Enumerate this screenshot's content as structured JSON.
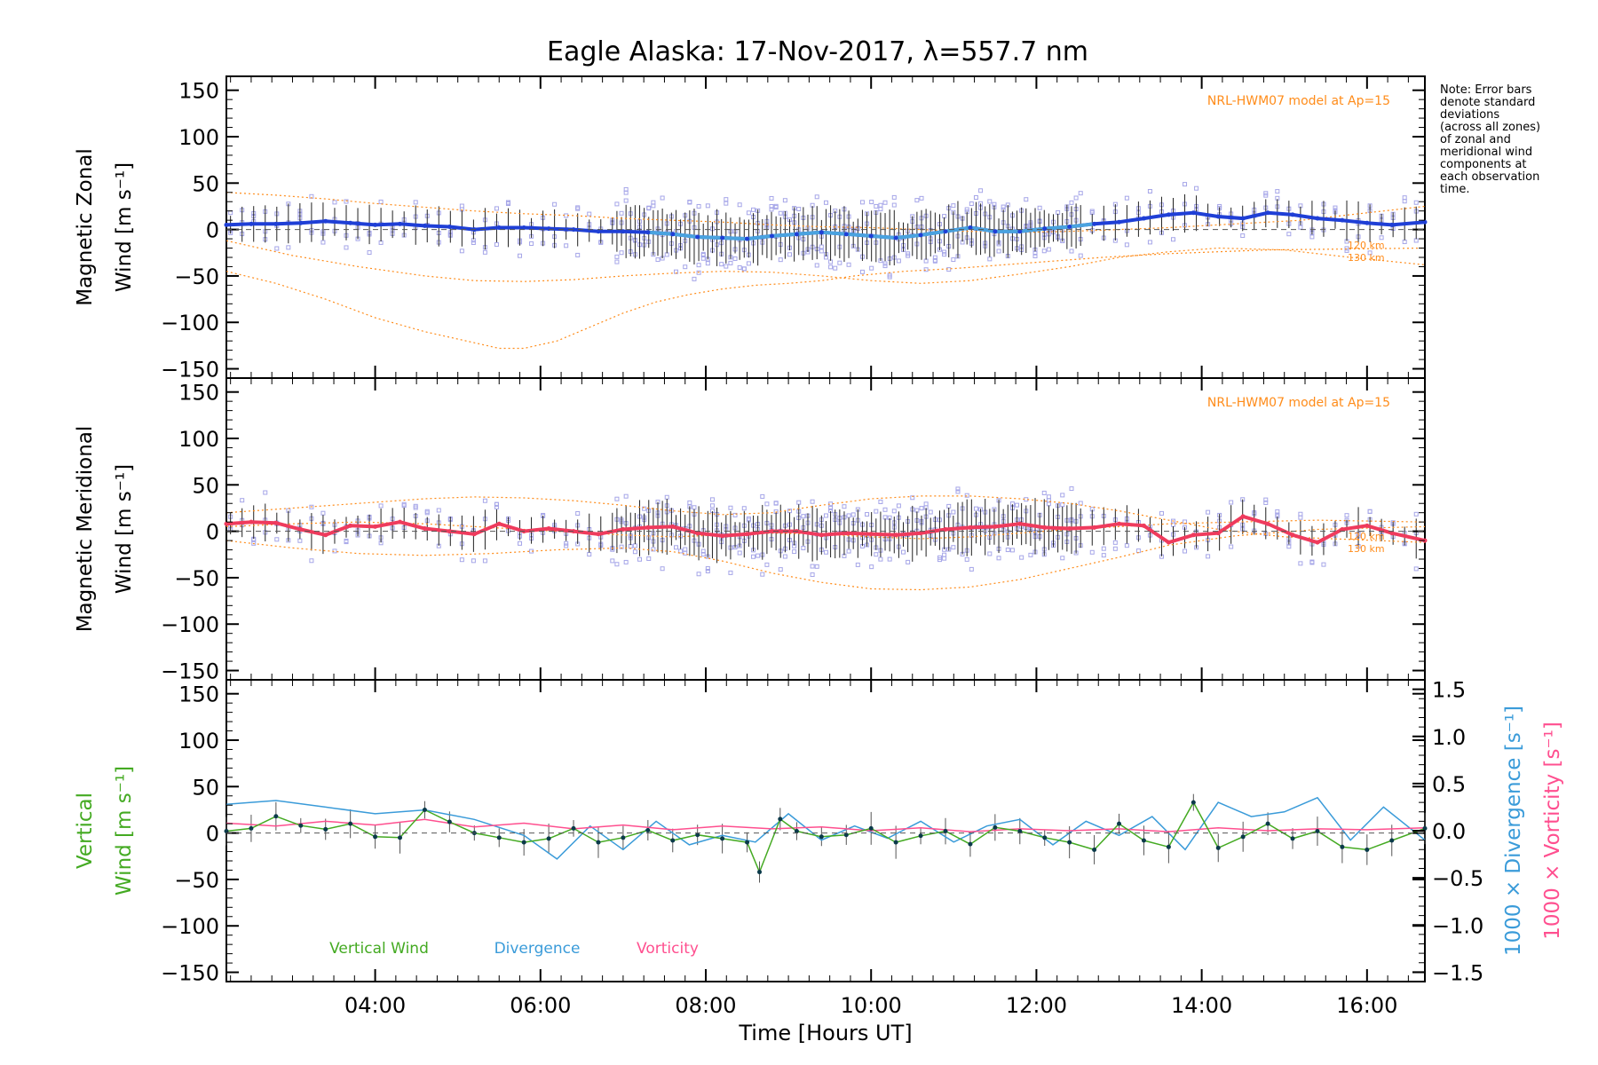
{
  "title": "Eagle Alaska: 17-Nov-2017, λ=557.7 nm",
  "note": "Note: Error bars\ndenote standard\ndeviations\n(across all zones)\nof zonal and\nmeridional wind\ncomponents at\neach observation\ntime.",
  "colors": {
    "zonal": "#1f3fd6",
    "zonal_light": "#4aa3df",
    "meridional": "#ef3b5d",
    "model": "#ff8c1a",
    "scatter": "#a6a6e8",
    "errbar": "#000000",
    "vertical": "#44aa22",
    "divergence": "#3a9bd9",
    "vorticity": "#ff4f8f",
    "axis": "#000000"
  },
  "chart_data": [
    {
      "type": "line",
      "title": "Eagle Alaska: 17-Nov-2017, λ=557.7 nm",
      "ylabel": [
        "Magnetic Zonal",
        "Wind [m s⁻¹]"
      ],
      "xlabel": "",
      "xlim": [
        2.2,
        16.7
      ],
      "ylim": [
        -160,
        165
      ],
      "yticks": [
        150,
        100,
        50,
        0,
        -50,
        -100,
        -150
      ],
      "model_label": "NRL-HWM07 model at Ap=15",
      "model_km_labels": [
        "120 km",
        "130 km"
      ],
      "series": [
        {
          "name": "Zonal wind",
          "x": [
            2.2,
            2.5,
            2.8,
            3.1,
            3.4,
            3.7,
            4.0,
            4.3,
            4.6,
            4.9,
            5.2,
            5.5,
            5.8,
            6.1,
            6.4,
            6.7,
            7.0,
            7.3,
            7.6,
            7.9,
            8.2,
            8.5,
            8.8,
            9.1,
            9.4,
            9.7,
            10.0,
            10.3,
            10.6,
            10.9,
            11.2,
            11.5,
            11.8,
            12.1,
            12.4,
            12.7,
            13.0,
            13.3,
            13.6,
            13.9,
            14.2,
            14.5,
            14.8,
            15.1,
            15.4,
            15.7,
            16.0,
            16.3,
            16.7
          ],
          "values": [
            5,
            6,
            6,
            7,
            9,
            7,
            5,
            6,
            4,
            3,
            0,
            2,
            2,
            1,
            0,
            -2,
            -2,
            -3,
            -5,
            -8,
            -9,
            -10,
            -7,
            -5,
            -3,
            -5,
            -7,
            -9,
            -6,
            -2,
            2,
            -2,
            -2,
            1,
            3,
            6,
            8,
            12,
            16,
            18,
            14,
            12,
            18,
            16,
            12,
            10,
            7,
            5,
            8
          ]
        },
        {
          "name": "Model 120 km (lower)",
          "values": [
            -45,
            -58,
            -75,
            -95,
            -110,
            -122,
            -128,
            -128,
            -120,
            -105,
            -90,
            -78,
            -70,
            -64,
            -60,
            -58,
            -55,
            -50,
            -45,
            -42,
            -38,
            -34,
            -30,
            -26,
            -22,
            -20
          ],
          "x": [
            2.2,
            2.8,
            3.4,
            4.0,
            4.6,
            5.2,
            5.5,
            5.8,
            6.2,
            6.6,
            7.0,
            7.4,
            7.8,
            8.2,
            8.6,
            9.0,
            9.4,
            9.8,
            10.4,
            11.0,
            11.6,
            12.2,
            12.8,
            13.6,
            14.8,
            16.7
          ]
        },
        {
          "name": "Model 130 km (lower)",
          "values": [
            -12,
            -28,
            -40,
            -50,
            -55,
            -56,
            -54,
            -50,
            -47,
            -45,
            -46,
            -50,
            -55,
            -58,
            -55,
            -48,
            -40,
            -30,
            -24,
            -20,
            -22,
            -30,
            -38
          ],
          "x": [
            2.2,
            3.0,
            3.8,
            4.6,
            5.2,
            5.8,
            6.4,
            7.0,
            7.6,
            8.2,
            8.8,
            9.4,
            10.0,
            10.6,
            11.2,
            11.8,
            12.4,
            13.0,
            13.6,
            14.2,
            15.0,
            15.8,
            16.7
          ]
        },
        {
          "name": "Model upper",
          "values": [
            40,
            37,
            33,
            28,
            24,
            20,
            17,
            15,
            12,
            10,
            8,
            5,
            3,
            2,
            0,
            -2,
            -3,
            -2,
            0,
            2,
            6,
            10,
            18,
            25
          ],
          "x": [
            2.2,
            2.8,
            3.4,
            4.0,
            4.6,
            5.2,
            5.8,
            6.4,
            7.0,
            7.6,
            8.2,
            8.8,
            9.4,
            10.0,
            10.6,
            11.2,
            11.8,
            12.4,
            13.0,
            13.6,
            14.4,
            15.2,
            16.0,
            16.7
          ]
        }
      ]
    },
    {
      "type": "line",
      "ylabel": [
        "Magnetic Meridional",
        "Wind [m s⁻¹]"
      ],
      "xlim": [
        2.2,
        16.7
      ],
      "ylim": [
        -160,
        165
      ],
      "yticks": [
        150,
        100,
        50,
        0,
        -50,
        -100,
        -150
      ],
      "model_label": "NRL-HWM07 model at Ap=15",
      "model_km_labels": [
        "120 km",
        "130 km"
      ],
      "series": [
        {
          "name": "Meridional wind",
          "x": [
            2.2,
            2.5,
            2.8,
            3.1,
            3.4,
            3.7,
            4.0,
            4.3,
            4.6,
            4.9,
            5.2,
            5.5,
            5.8,
            6.1,
            6.4,
            6.7,
            7.0,
            7.3,
            7.6,
            7.9,
            8.2,
            8.5,
            8.8,
            9.1,
            9.4,
            9.7,
            10.0,
            10.3,
            10.6,
            10.9,
            11.2,
            11.5,
            11.8,
            12.1,
            12.4,
            12.7,
            13.0,
            13.3,
            13.6,
            13.9,
            14.2,
            14.5,
            14.8,
            15.1,
            15.4,
            15.7,
            16.0,
            16.3,
            16.7
          ],
          "values": [
            8,
            10,
            9,
            2,
            -4,
            6,
            5,
            10,
            3,
            0,
            -3,
            8,
            0,
            3,
            0,
            -3,
            2,
            4,
            5,
            -2,
            -5,
            -3,
            0,
            0,
            -4,
            -2,
            -3,
            -4,
            -2,
            2,
            4,
            5,
            8,
            4,
            3,
            4,
            8,
            6,
            -12,
            -4,
            -2,
            16,
            8,
            -4,
            -12,
            2,
            6,
            -2,
            -10
          ]
        },
        {
          "name": "Model upper",
          "values": [
            20,
            25,
            30,
            35,
            37,
            36,
            33,
            28,
            22,
            18,
            20,
            28,
            35,
            38,
            38,
            35,
            30,
            22,
            12,
            2,
            -6,
            -12
          ],
          "x": [
            2.2,
            3.0,
            3.8,
            4.6,
            5.2,
            5.8,
            6.4,
            7.0,
            7.6,
            8.2,
            8.8,
            9.4,
            10.0,
            10.6,
            11.2,
            11.8,
            12.4,
            13.0,
            13.6,
            14.2,
            15.0,
            16.7
          ]
        },
        {
          "name": "Model lower",
          "values": [
            -10,
            -18,
            -24,
            -26,
            -24,
            -20,
            -18,
            -22,
            -32,
            -45,
            -55,
            -62,
            -63,
            -60,
            -52,
            -40,
            -28,
            -15,
            -5,
            2,
            5
          ],
          "x": [
            2.2,
            3.0,
            3.8,
            4.6,
            5.4,
            6.2,
            7.0,
            7.6,
            8.2,
            8.8,
            9.4,
            10.0,
            10.6,
            11.2,
            11.8,
            12.4,
            13.0,
            13.6,
            14.4,
            15.4,
            16.7
          ]
        },
        {
          "name": "Model middle",
          "values": [
            5,
            8,
            10,
            8,
            4,
            0,
            -4,
            -6,
            -4,
            -2,
            -3,
            -6,
            -8,
            -6,
            -2,
            2,
            5,
            8,
            10,
            12,
            10
          ],
          "x": [
            2.2,
            3.0,
            3.8,
            4.6,
            5.4,
            6.2,
            7.0,
            7.6,
            8.2,
            8.8,
            9.4,
            10.0,
            10.6,
            11.2,
            11.8,
            12.4,
            13.0,
            13.6,
            14.4,
            15.4,
            16.7
          ]
        }
      ]
    },
    {
      "type": "line",
      "ylabel": [
        "Vertical",
        "Wind [m s⁻¹]"
      ],
      "xlabel": "Time [Hours UT]",
      "xlim": [
        2.2,
        16.7
      ],
      "ylim": [
        -160,
        165
      ],
      "yticks": [
        150,
        100,
        50,
        0,
        -50,
        -100,
        -150
      ],
      "right_ylabels": [
        "1000 × Divergence [s⁻¹]",
        "1000 × Vorticity [s⁻¹]"
      ],
      "right_ylim": [
        -1.6,
        1.6
      ],
      "right_yticks": [
        1.5,
        1.0,
        0.5,
        0.0,
        -0.5,
        -1.0,
        -1.5
      ],
      "xticks": [
        "04:00",
        "06:00",
        "08:00",
        "10:00",
        "12:00",
        "14:00",
        "16:00"
      ],
      "xtick_values": [
        4,
        6,
        8,
        10,
        12,
        14,
        16
      ],
      "legend": [
        "Vertical Wind",
        "Divergence",
        "Vorticity"
      ],
      "series": [
        {
          "name": "Vertical Wind",
          "x": [
            2.2,
            2.5,
            2.8,
            3.1,
            3.4,
            3.7,
            4.0,
            4.3,
            4.6,
            4.9,
            5.2,
            5.5,
            5.8,
            6.1,
            6.4,
            6.7,
            7.0,
            7.3,
            7.6,
            7.9,
            8.2,
            8.5,
            8.65,
            8.9,
            9.1,
            9.4,
            9.7,
            10.0,
            10.3,
            10.6,
            10.9,
            11.2,
            11.5,
            11.8,
            12.1,
            12.4,
            12.7,
            13.0,
            13.3,
            13.6,
            13.9,
            14.2,
            14.5,
            14.8,
            15.1,
            15.4,
            15.7,
            16.0,
            16.3,
            16.7
          ],
          "values": [
            2,
            5,
            18,
            8,
            4,
            10,
            -4,
            -5,
            25,
            12,
            0,
            -5,
            -10,
            -6,
            5,
            -10,
            -5,
            3,
            -8,
            -2,
            -6,
            -10,
            -42,
            15,
            2,
            -4,
            -2,
            5,
            -10,
            -3,
            2,
            -12,
            6,
            2,
            -5,
            -10,
            -18,
            10,
            -8,
            -15,
            33,
            -16,
            -4,
            10,
            -6,
            2,
            -15,
            -18,
            -8,
            5
          ]
        },
        {
          "name": "Divergence",
          "x": [
            2.2,
            2.8,
            3.4,
            4.0,
            4.6,
            5.2,
            5.8,
            6.2,
            6.6,
            7.0,
            7.4,
            7.8,
            8.2,
            8.6,
            9.0,
            9.4,
            9.8,
            10.2,
            10.6,
            11.0,
            11.4,
            11.8,
            12.2,
            12.6,
            13.0,
            13.4,
            13.8,
            14.2,
            14.6,
            15.0,
            15.4,
            15.8,
            16.2,
            16.7
          ],
          "values": [
            0.28,
            0.32,
            0.25,
            0.18,
            0.22,
            0.12,
            -0.05,
            -0.3,
            0.05,
            -0.2,
            0.1,
            -0.15,
            -0.05,
            -0.12,
            0.18,
            -0.1,
            0.05,
            -0.08,
            0.1,
            -0.12,
            0.05,
            0.12,
            -0.15,
            0.1,
            -0.05,
            0.15,
            -0.2,
            0.3,
            0.15,
            0.2,
            0.35,
            -0.1,
            0.25,
            -0.1
          ]
        },
        {
          "name": "Vorticity",
          "x": [
            2.2,
            2.8,
            3.4,
            4.0,
            4.6,
            5.2,
            5.8,
            6.4,
            7.0,
            7.6,
            8.2,
            8.8,
            9.4,
            10.0,
            10.6,
            11.2,
            11.8,
            12.4,
            13.0,
            13.6,
            14.2,
            14.8,
            15.4,
            16.0,
            16.7
          ],
          "values": [
            0.08,
            0.05,
            0.1,
            0.06,
            0.12,
            0.04,
            0.08,
            0.02,
            0.06,
            0.01,
            0.05,
            0.02,
            0.04,
            0.0,
            0.03,
            -0.01,
            0.02,
            0.0,
            0.02,
            -0.01,
            0.03,
            0.0,
            0.02,
            0.01,
            0.03
          ]
        }
      ]
    }
  ]
}
